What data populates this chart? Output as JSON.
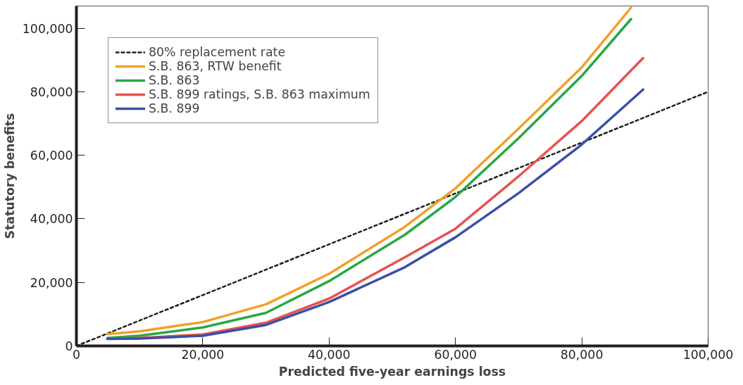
{
  "chart_data": {
    "type": "line",
    "xlabel": "Predicted five-year earnings loss",
    "ylabel": "Statutory benefits",
    "xlim": [
      0,
      100000
    ],
    "ylim": [
      0,
      107000
    ],
    "xticks": [
      {
        "value": 0,
        "label": "0"
      },
      {
        "value": 20000,
        "label": "20,000"
      },
      {
        "value": 40000,
        "label": "40,000"
      },
      {
        "value": 60000,
        "label": "60,000"
      },
      {
        "value": 80000,
        "label": "80,000"
      },
      {
        "value": 100000,
        "label": "100,000"
      }
    ],
    "yticks": [
      {
        "value": 0,
        "label": "0"
      },
      {
        "value": 20000,
        "label": "20,000"
      },
      {
        "value": 40000,
        "label": "40,000"
      },
      {
        "value": 60000,
        "label": "60,000"
      },
      {
        "value": 80000,
        "label": "80,000"
      },
      {
        "value": 100000,
        "label": "100,000"
      }
    ],
    "grid": false,
    "legend": "top left",
    "series": [
      {
        "name": "80% replacement rate",
        "color": "#231f20",
        "line_style": "dashed",
        "x": [
          0,
          100000
        ],
        "values": [
          0,
          80000
        ]
      },
      {
        "name": "S.B. 863, RTW benefit",
        "color": "#f0a028",
        "x": [
          4900,
          10000,
          20000,
          30000,
          40000,
          52000,
          60000,
          70000,
          80000,
          87800
        ],
        "values": [
          3700,
          4600,
          7500,
          13100,
          22700,
          37500,
          49600,
          68400,
          87700,
          106500
        ]
      },
      {
        "name": "S.B. 863",
        "color": "#28a745",
        "x": [
          4900,
          10000,
          20000,
          30000,
          40000,
          52000,
          60000,
          70000,
          80000,
          87800
        ],
        "values": [
          2500,
          3200,
          5800,
          10400,
          20400,
          35000,
          46900,
          65400,
          85000,
          102900
        ]
      },
      {
        "name": "S.B. 899 ratings, S.B. 863 maximum",
        "color": "#e8524f",
        "x": [
          4900,
          10000,
          20000,
          30000,
          40000,
          52000,
          60000,
          70000,
          80000,
          89700
        ],
        "values": [
          2300,
          2500,
          3600,
          7300,
          14900,
          27900,
          36900,
          53400,
          70800,
          90600
        ]
      },
      {
        "name": "S.B. 899",
        "color": "#3a4fa8",
        "x": [
          4900,
          10000,
          20000,
          30000,
          40000,
          52000,
          60000,
          70000,
          80000,
          89700
        ],
        "values": [
          2200,
          2300,
          3200,
          6600,
          13800,
          24800,
          34200,
          48100,
          63400,
          80700
        ]
      }
    ]
  }
}
